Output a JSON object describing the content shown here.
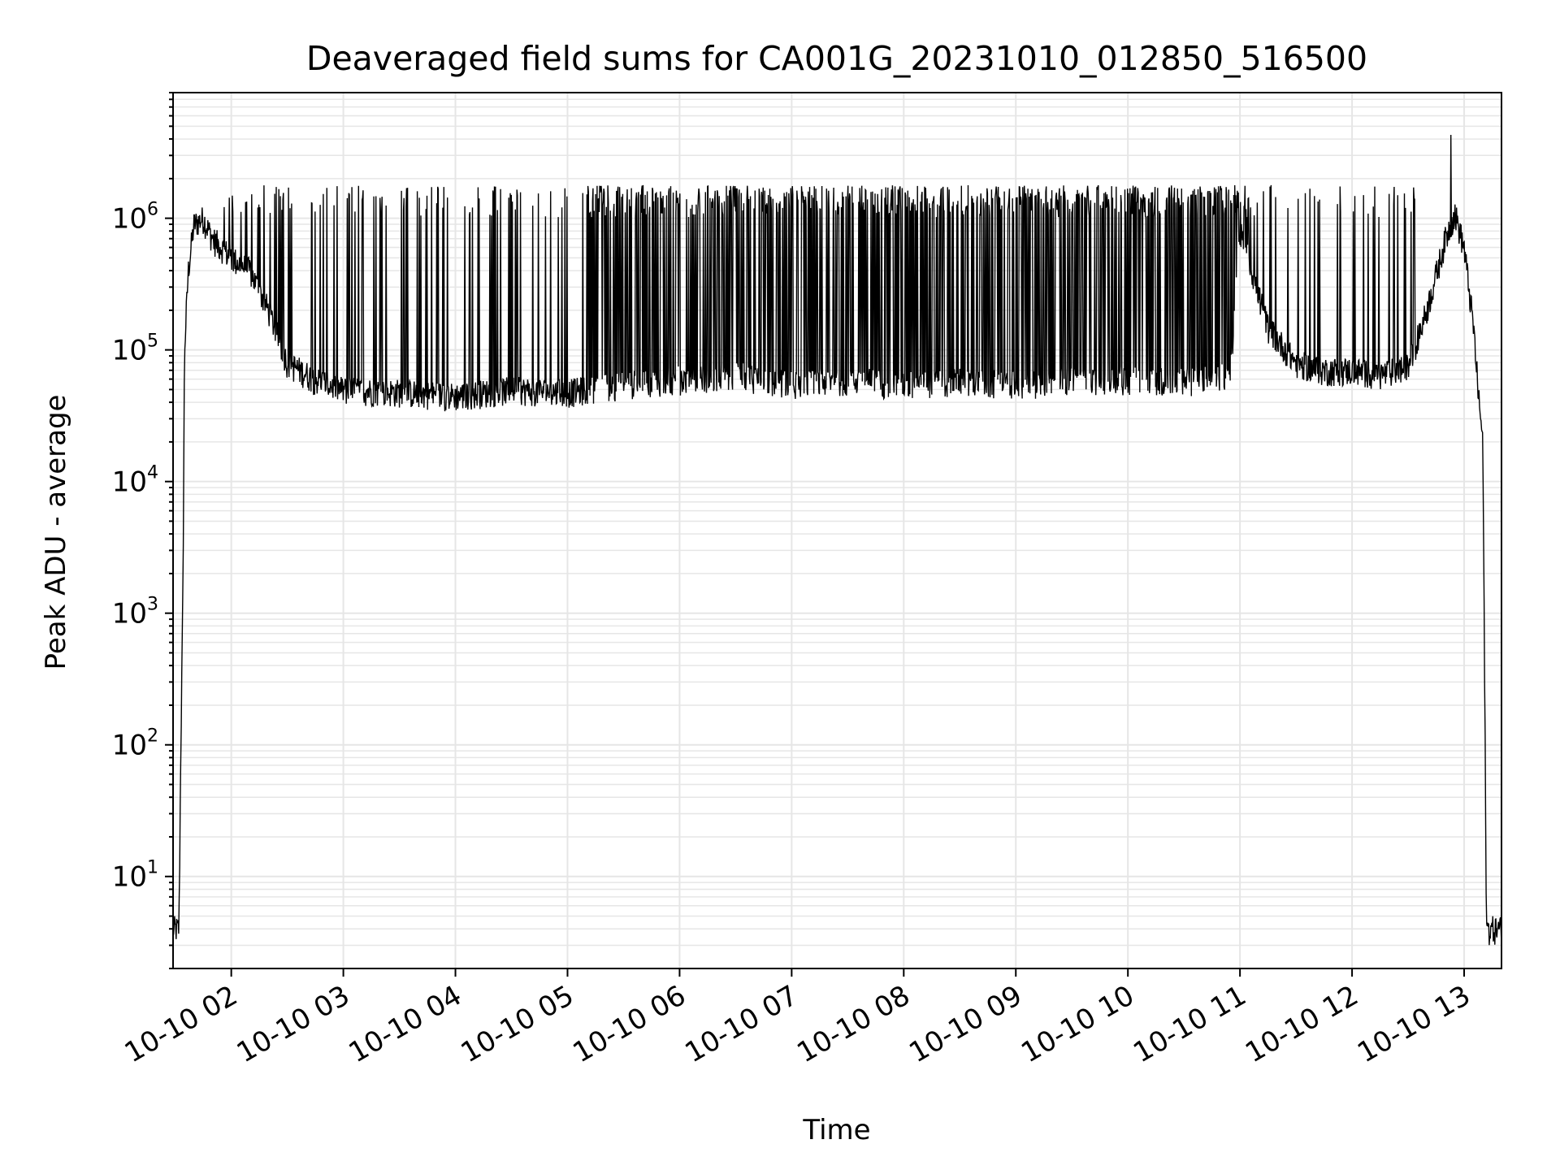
{
  "chart_data": {
    "type": "line",
    "title": "Deaveraged field sums for CA001G_20231010_012850_516500",
    "xlabel": "Time",
    "ylabel": "Peak ADU - average",
    "yscale": "log",
    "ylim": [
      2,
      9000000
    ],
    "xlim": [
      "2023-10-10T01:28:50",
      "2023-10-10T13:20:00"
    ],
    "grid": true,
    "line_color": "#000000",
    "grid_color": "#e6e6e6",
    "x_ticks": [
      "10-10 02",
      "10-10 03",
      "10-10 04",
      "10-10 05",
      "10-10 06",
      "10-10 07",
      "10-10 08",
      "10-10 09",
      "10-10 10",
      "10-10 11",
      "10-10 12",
      "10-10 13"
    ],
    "y_ticks": [
      {
        "base": "10",
        "exp": "1",
        "value": 10
      },
      {
        "base": "10",
        "exp": "2",
        "value": 100
      },
      {
        "base": "10",
        "exp": "3",
        "value": 1000
      },
      {
        "base": "10",
        "exp": "4",
        "value": 10000
      },
      {
        "base": "10",
        "exp": "5",
        "value": 100000
      },
      {
        "base": "10",
        "exp": "6",
        "value": 1000000
      }
    ],
    "series": [
      {
        "x": [
          "2023-10-10T01:29",
          "2023-10-10T01:32",
          "2023-10-10T01:33",
          "2023-10-10T01:34",
          "2023-10-10T01:35",
          "2023-10-10T01:37",
          "2023-10-10T01:40",
          "2023-10-10T01:45",
          "2023-10-10T01:50",
          "2023-10-10T01:55",
          "2023-10-10T02:00",
          "2023-10-10T02:10",
          "2023-10-10T02:20",
          "2023-10-10T02:30",
          "2023-10-10T02:45",
          "2023-10-10T03:00",
          "2023-10-10T03:30",
          "2023-10-10T04:00",
          "2023-10-10T04:30",
          "2023-10-10T05:00",
          "2023-10-10T05:30",
          "2023-10-10T06:00",
          "2023-10-10T06:30",
          "2023-10-10T07:00",
          "2023-10-10T07:30",
          "2023-10-10T08:00",
          "2023-10-10T08:30",
          "2023-10-10T09:00",
          "2023-10-10T09:30",
          "2023-10-10T10:00",
          "2023-10-10T10:30",
          "2023-10-10T10:55",
          "2023-10-10T11:00",
          "2023-10-10T11:15",
          "2023-10-10T11:30",
          "2023-10-10T11:45",
          "2023-10-10T12:00",
          "2023-10-10T12:15",
          "2023-10-10T12:30",
          "2023-10-10T12:40",
          "2023-10-10T12:50",
          "2023-10-10T12:55",
          "2023-10-10T13:00",
          "2023-10-10T13:05",
          "2023-10-10T13:08",
          "2023-10-10T13:10",
          "2023-10-10T13:12",
          "2023-10-10T13:20"
        ],
        "y": [
          4,
          4,
          100,
          1000,
          100000,
          400000,
          900000,
          1000000,
          700000,
          600000,
          500000,
          400000,
          200000,
          80000,
          60000,
          50000,
          48000,
          45000,
          50000,
          48000,
          55000,
          60000,
          65000,
          55000,
          60000,
          55000,
          58000,
          55000,
          60000,
          60000,
          58000,
          65000,
          800000,
          150000,
          80000,
          70000,
          70000,
          65000,
          75000,
          200000,
          700000,
          1100000,
          600000,
          150000,
          40000,
          20000,
          4,
          4
        ],
        "upper_envelope": 1700000,
        "peak": {
          "x": "2023-10-10T12:53",
          "y": 4300000
        }
      }
    ]
  }
}
